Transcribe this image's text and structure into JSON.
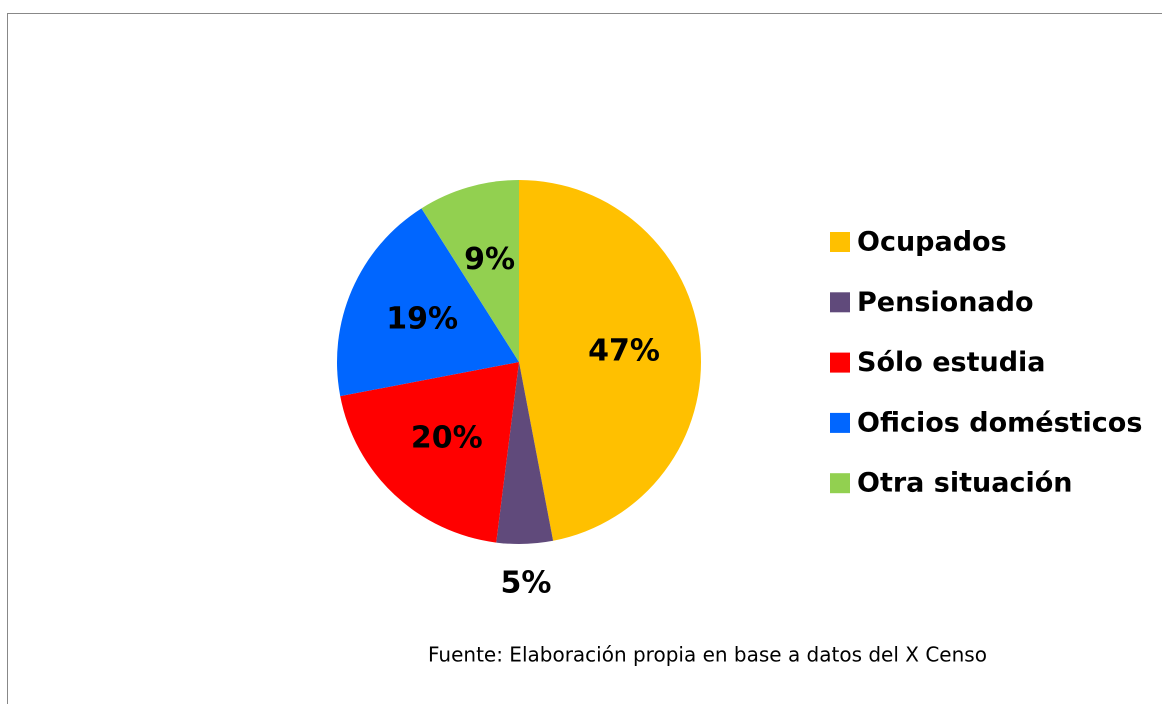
{
  "chart_data": {
    "type": "pie",
    "categories": [
      "Ocupados",
      "Pensionado",
      "Sólo estudia",
      "Oficios domésticos",
      "Otra situación"
    ],
    "values": [
      47,
      5,
      20,
      19,
      9
    ],
    "value_labels": [
      "47%",
      "5%",
      "20%",
      "19%",
      "9%"
    ],
    "colors": [
      "#ffc000",
      "#604a7b",
      "#ff0000",
      "#0066ff",
      "#92d050"
    ],
    "legend": "right",
    "source": "Fuente: Elaboración propia en base a datos del X Censo"
  }
}
